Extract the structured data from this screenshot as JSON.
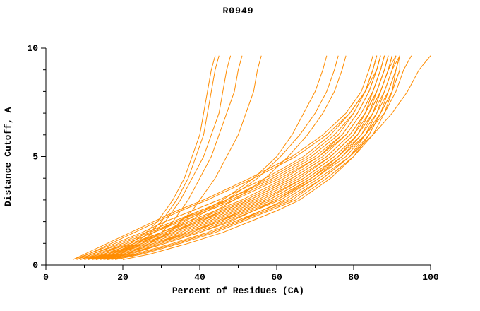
{
  "chart_data": {
    "type": "line",
    "title": "R0949",
    "xlabel": "Percent of Residues (CA)",
    "ylabel": "Distance Cutoff, A",
    "xlim": [
      0,
      100
    ],
    "ylim": [
      0,
      10
    ],
    "x_ticks": {
      "major": [
        0,
        20,
        40,
        60,
        80,
        100
      ],
      "minor": [
        10,
        30,
        50,
        70,
        90
      ]
    },
    "y_ticks": {
      "major": [
        0,
        5,
        10
      ],
      "minor": [
        1,
        2,
        3,
        4,
        6,
        7,
        8,
        9
      ]
    },
    "line_color": "#ff8c00",
    "axis_color": "#000000",
    "background_color": "#ffffff",
    "legend": "none",
    "grid": false,
    "y_levels": [
      0.25,
      0.5,
      1,
      1.5,
      2,
      2.5,
      3,
      4,
      5,
      6,
      7,
      8,
      9,
      9.65
    ],
    "series": [
      [
        7,
        10,
        16,
        22,
        28,
        34,
        41,
        53,
        64,
        72,
        78,
        82,
        84,
        85
      ],
      [
        8,
        12,
        19,
        26,
        33,
        40,
        47,
        59,
        69,
        76,
        80,
        83,
        85,
        86
      ],
      [
        9,
        13,
        21,
        28,
        35,
        42,
        49,
        61,
        71,
        77,
        81,
        84,
        86,
        87
      ],
      [
        10,
        15,
        23,
        31,
        38,
        45,
        52,
        63,
        72,
        78,
        82,
        85,
        87,
        88
      ],
      [
        11,
        16,
        25,
        33,
        40,
        47,
        54,
        65,
        74,
        80,
        84,
        86,
        88,
        89
      ],
      [
        12,
        18,
        27,
        35,
        42,
        49,
        56,
        67,
        75,
        81,
        85,
        87,
        89,
        90
      ],
      [
        13,
        19,
        28,
        37,
        44,
        51,
        58,
        68,
        76,
        82,
        85,
        88,
        90,
        91
      ],
      [
        14,
        21,
        30,
        39,
        46,
        53,
        60,
        70,
        77,
        82,
        86,
        88,
        90,
        92
      ],
      [
        8,
        11,
        17,
        23,
        29,
        35,
        42,
        54,
        65,
        73,
        79,
        83,
        85,
        86
      ],
      [
        9,
        14,
        22,
        30,
        37,
        44,
        51,
        62,
        71,
        78,
        82,
        85,
        87,
        88
      ],
      [
        10,
        14,
        21,
        28,
        34,
        41,
        48,
        60,
        70,
        77,
        81,
        84,
        86,
        87
      ],
      [
        11,
        17,
        26,
        34,
        41,
        48,
        55,
        66,
        74,
        80,
        83,
        86,
        88,
        89
      ],
      [
        12,
        17,
        25,
        33,
        40,
        46,
        53,
        64,
        73,
        79,
        83,
        85,
        87,
        88
      ],
      [
        13,
        20,
        29,
        38,
        45,
        52,
        59,
        69,
        76,
        81,
        84,
        87,
        89,
        90
      ],
      [
        15,
        22,
        31,
        40,
        47,
        54,
        61,
        70,
        78,
        83,
        86,
        89,
        91,
        92
      ],
      [
        16,
        23,
        33,
        42,
        49,
        56,
        63,
        72,
        79,
        83,
        87,
        89,
        91,
        92
      ],
      [
        18,
        25,
        35,
        44,
        51,
        58,
        65,
        73,
        80,
        84,
        87,
        90,
        91,
        92
      ],
      [
        20,
        27,
        37,
        46,
        53,
        60,
        66,
        74,
        80,
        85,
        88,
        90,
        92,
        92
      ],
      [
        7,
        11,
        18,
        25,
        31,
        38,
        45,
        57,
        67,
        74,
        79,
        83,
        85,
        86
      ],
      [
        9,
        12,
        20,
        27,
        34,
        40,
        47,
        58,
        68,
        75,
        80,
        83,
        86,
        87
      ],
      [
        10,
        16,
        24,
        32,
        39,
        46,
        53,
        64,
        73,
        79,
        83,
        86,
        88,
        89
      ],
      [
        12,
        19,
        28,
        36,
        43,
        50,
        57,
        67,
        75,
        81,
        84,
        87,
        89,
        90
      ],
      [
        14,
        20,
        29,
        37,
        45,
        51,
        58,
        68,
        76,
        81,
        85,
        87,
        89,
        91
      ],
      [
        16,
        24,
        34,
        43,
        50,
        57,
        64,
        72,
        79,
        84,
        87,
        90,
        92,
        92
      ],
      [
        12,
        16,
        24,
        31,
        37,
        42,
        47,
        55,
        61,
        66,
        70,
        73,
        75,
        76
      ],
      [
        11,
        15,
        23,
        30,
        36,
        41,
        46,
        54,
        60,
        64,
        67,
        70,
        72,
        73
      ],
      [
        13,
        18,
        26,
        33,
        39,
        44,
        49,
        57,
        63,
        68,
        72,
        75,
        77,
        78
      ],
      [
        13,
        17,
        23,
        27,
        30,
        32,
        34,
        37,
        39,
        41,
        42,
        43,
        44,
        45
      ],
      [
        14,
        18,
        24,
        28,
        31,
        33,
        35,
        38,
        41,
        43,
        45,
        46,
        47,
        48
      ],
      [
        15,
        19,
        25,
        30,
        33,
        35,
        37,
        40,
        43,
        45,
        47,
        49,
        50,
        51
      ],
      [
        16,
        21,
        27,
        32,
        35,
        38,
        40,
        44,
        47,
        50,
        52,
        54,
        55,
        56
      ],
      [
        12,
        16,
        22,
        26,
        29,
        31,
        33,
        36,
        38,
        40,
        41,
        42,
        43,
        44
      ],
      [
        17,
        24,
        34,
        43,
        50,
        56,
        62,
        71,
        79,
        85,
        90,
        94,
        97,
        100
      ],
      [
        15,
        21,
        31,
        40,
        48,
        54,
        60,
        69,
        77,
        83,
        88,
        91,
        93,
        95
      ]
    ]
  }
}
